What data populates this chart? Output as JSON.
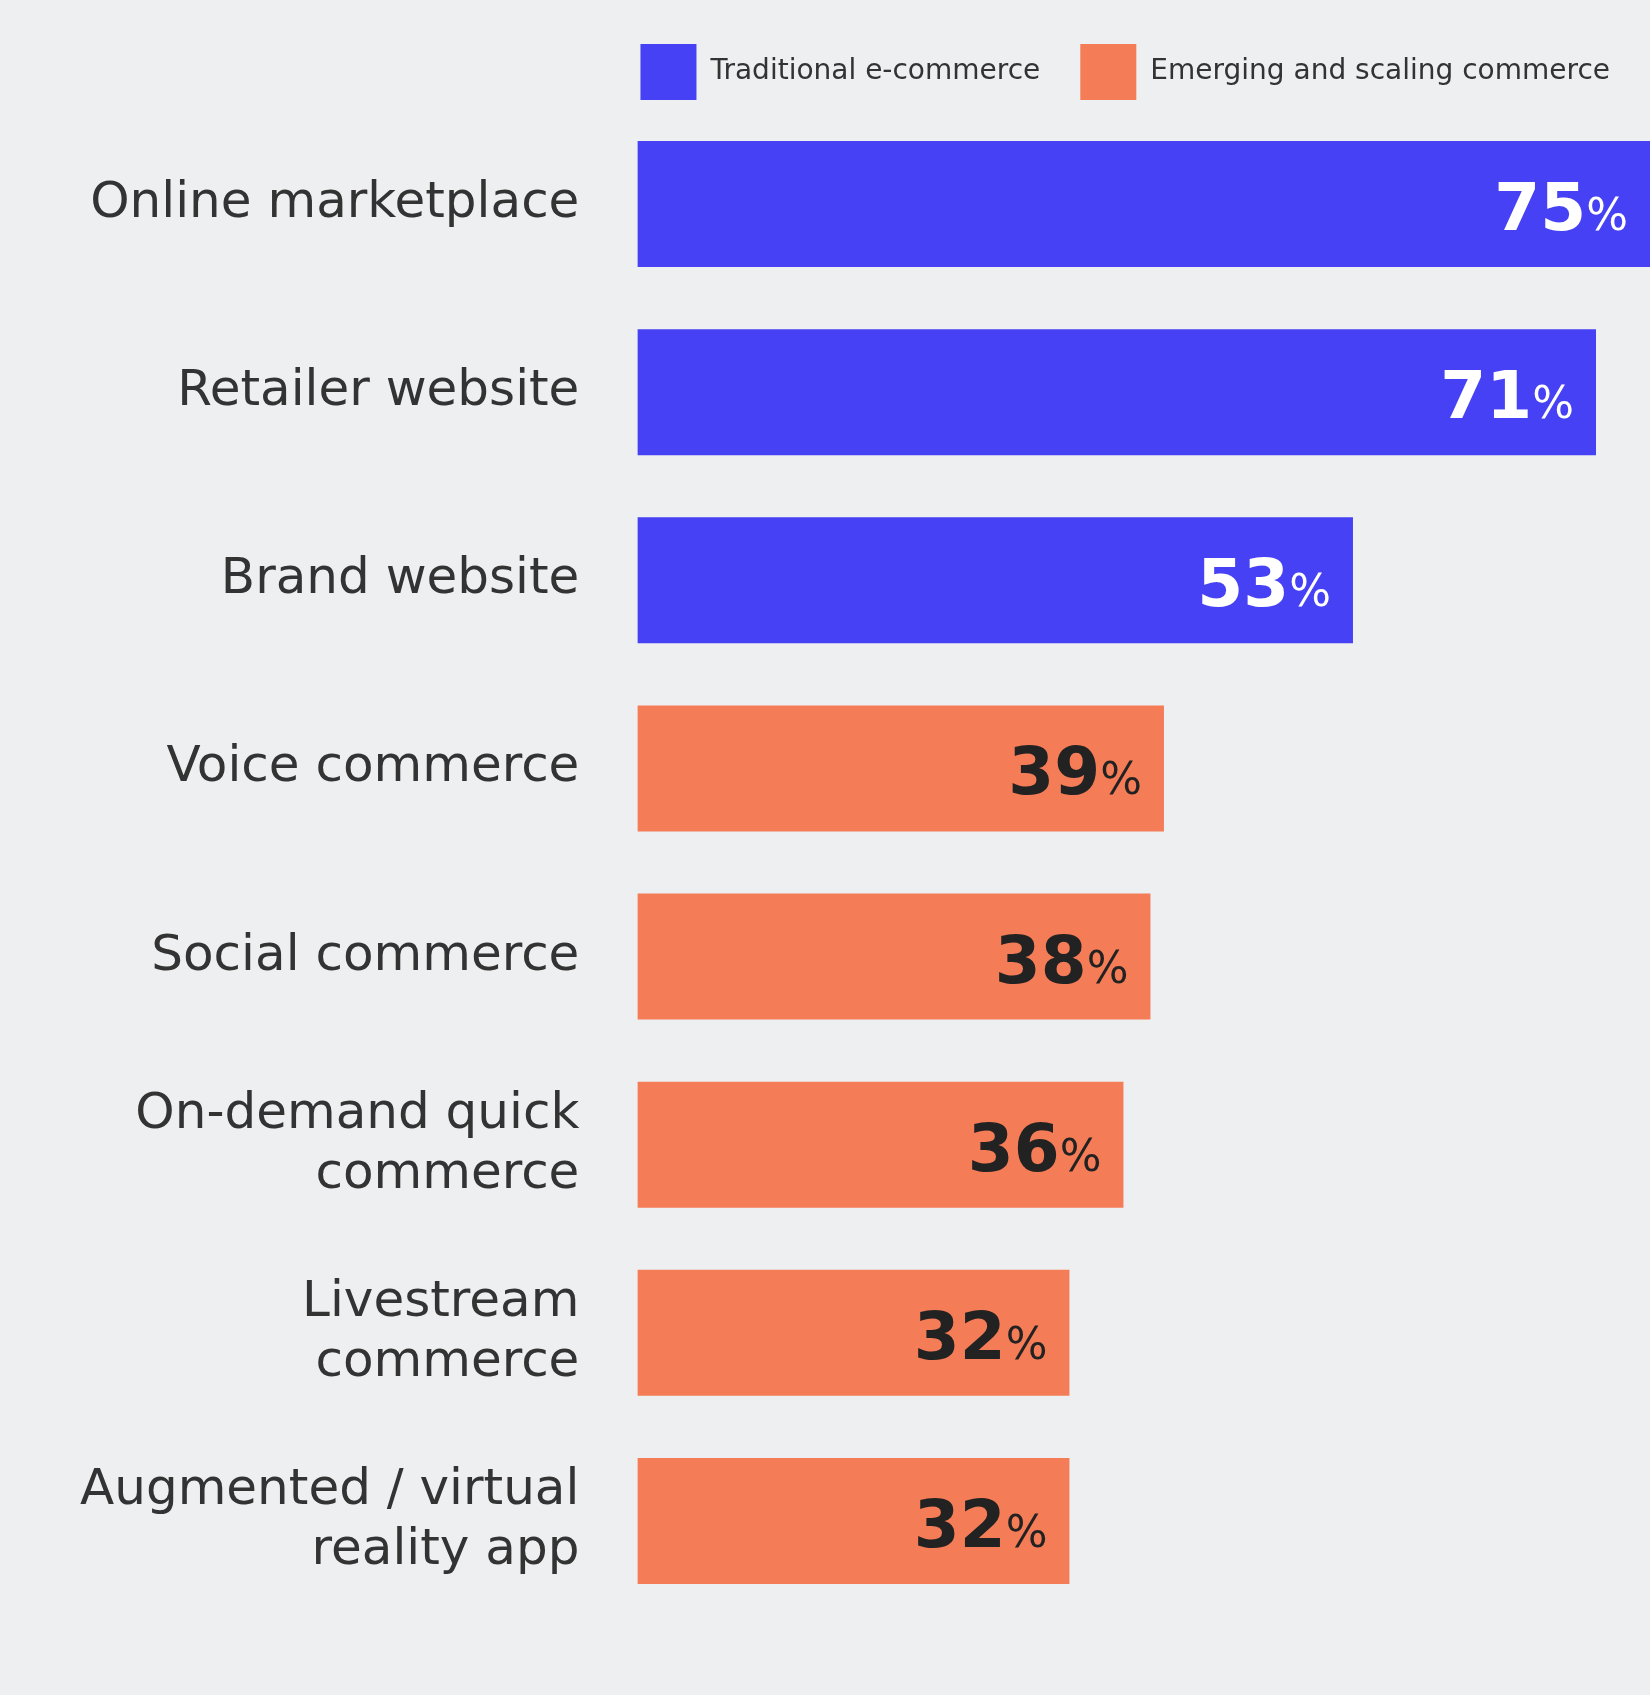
{
  "chart_data": {
    "type": "bar",
    "orientation": "horizontal",
    "legend": "top right",
    "categories": [
      "Online marketplace",
      "Retailer website",
      "Brand website",
      "Voice commerce",
      "Social commerce",
      "On-demand quick commerce",
      "Livestream commerce",
      "Augmented / virtual reality app"
    ],
    "series": [
      {
        "name": "Traditional e-commerce",
        "color": "#4641f5",
        "values": [
          75,
          71,
          53,
          null,
          null,
          null,
          null,
          null
        ],
        "value_labels": [
          "75%",
          "71%",
          "53%",
          null,
          null,
          null,
          null,
          null
        ]
      },
      {
        "name": "Emerging and scaling commerce",
        "color": "#f47c56",
        "values": [
          null,
          null,
          null,
          39,
          38,
          36,
          32,
          32
        ],
        "value_labels": [
          null,
          null,
          null,
          "39%",
          "38%",
          "36%",
          "32%",
          "32%"
        ]
      }
    ]
  }
}
